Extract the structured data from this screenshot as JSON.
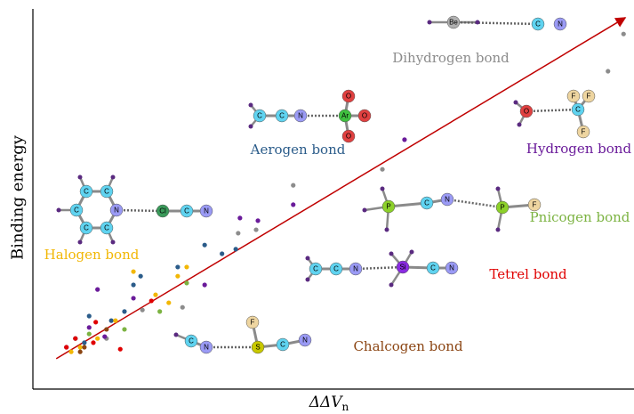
{
  "chart_data": {
    "type": "scatter",
    "y_label": "Binding energy",
    "x_label": "ΔΔV",
    "x_label_sub": "n",
    "xlim": [
      0,
      100
    ],
    "ylim": [
      0,
      100
    ],
    "trend": {
      "color": "#c00000",
      "x": [
        3.9,
        99.0
      ],
      "y": [
        8.0,
        97.7
      ]
    },
    "series": [
      {
        "name": "Dihydrogen bond",
        "color": "#8c8c8c",
        "x": [
          98.7,
          96.1,
          58.4,
          43.5,
          34.3,
          37.3,
          18.3,
          12.3,
          25.0
        ],
        "values": [
          93.4,
          83.6,
          57.8,
          53.6,
          41.0,
          41.9,
          20.8,
          13.3,
          21.5
        ]
      },
      {
        "name": "Aerogen bond",
        "color": "#2b5c8a",
        "x": [
          33.9,
          31.6,
          28.7,
          18.0,
          16.8,
          15.3,
          9.4,
          13.1,
          7.1,
          8.6,
          24.2
        ],
        "values": [
          36.8,
          35.6,
          37.9,
          29.7,
          27.4,
          20.4,
          19.2,
          18.0,
          13.3,
          12.2,
          32.1
        ]
      },
      {
        "name": "Hydrogen bond",
        "color": "#6a1b9a",
        "x": [
          62.1,
          43.5,
          37.6,
          34.6,
          28.7,
          10.8,
          16.8,
          12.0,
          5.6,
          9.4
        ],
        "values": [
          65.6,
          48.5,
          44.3,
          45.0,
          27.4,
          26.2,
          23.9,
          13.8,
          11.0,
          16.2
        ]
      },
      {
        "name": "Halogen bond",
        "color": "#f2b705",
        "x": [
          25.7,
          24.2,
          20.5,
          22.7,
          13.8,
          10.8,
          7.9,
          6.4,
          16.8
        ],
        "values": [
          32.1,
          29.7,
          24.8,
          22.7,
          18.0,
          13.3,
          11.0,
          9.8,
          30.9
        ]
      },
      {
        "name": "Pnicogen bond",
        "color": "#7cb342",
        "x": [
          25.7,
          21.2,
          15.3,
          9.4
        ],
        "values": [
          27.9,
          20.4,
          15.7,
          14.5
        ]
      },
      {
        "name": "Tetrel bond",
        "color": "#e00000",
        "x": [
          10.5,
          7.1,
          5.6,
          10.1,
          14.6,
          19.8
        ],
        "values": [
          17.6,
          13.3,
          11.0,
          12.2,
          10.5,
          23.2
        ]
      },
      {
        "name": "Chalcogen bond",
        "color": "#8b4513",
        "x": [
          8.6,
          12.3,
          7.9
        ],
        "values": [
          11.0,
          15.7,
          9.8
        ]
      }
    ],
    "molecules": [
      {
        "atoms": [
          "Be",
          "C",
          "N"
        ]
      },
      {
        "atoms": [
          "C",
          "C",
          "N",
          "Ar",
          "O",
          "O",
          "O"
        ]
      },
      {
        "atoms": [
          "O",
          "C",
          "F",
          "F",
          "F"
        ]
      },
      {
        "atoms": [
          "C",
          "C",
          "N",
          "C",
          "C",
          "C",
          "Cl",
          "C",
          "N"
        ]
      },
      {
        "atoms": [
          "P",
          "C",
          "N",
          "P",
          "F"
        ]
      },
      {
        "atoms": [
          "C",
          "C",
          "N",
          "Si",
          "C",
          "N"
        ]
      },
      {
        "atoms": [
          "C",
          "N",
          "S",
          "F",
          "C",
          "N"
        ]
      }
    ]
  }
}
